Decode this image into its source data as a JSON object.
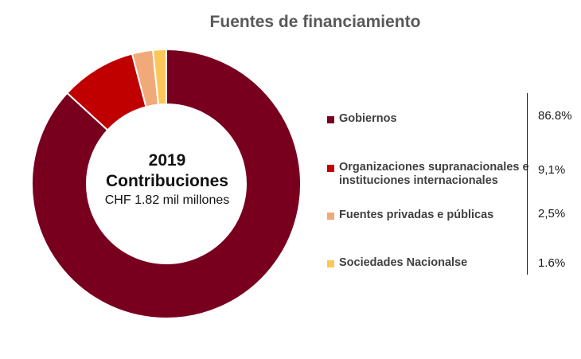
{
  "chart_data": {
    "type": "pie",
    "title": "Fuentes de financiamiento",
    "center": {
      "year": "2019",
      "label": "Contribuciones",
      "sublabel": "CHF 1.82 mil millones"
    },
    "legend_position": "right",
    "slices": [
      {
        "label": "Gobiernos",
        "value": 86.8,
        "value_label": "86.8%",
        "color": "#78001e"
      },
      {
        "label": "Organizaciones supranacionales e instituciones internacionales",
        "value": 9.1,
        "value_label": "9,1%",
        "color": "#c00000"
      },
      {
        "label": "Fuentes privadas e públicas",
        "value": 2.5,
        "value_label": "2,5%",
        "color": "#f2a97a"
      },
      {
        "label": "Sociedades Nacionalse",
        "value": 1.6,
        "value_label": "1.6%",
        "color": "#fcc75a"
      }
    ]
  }
}
